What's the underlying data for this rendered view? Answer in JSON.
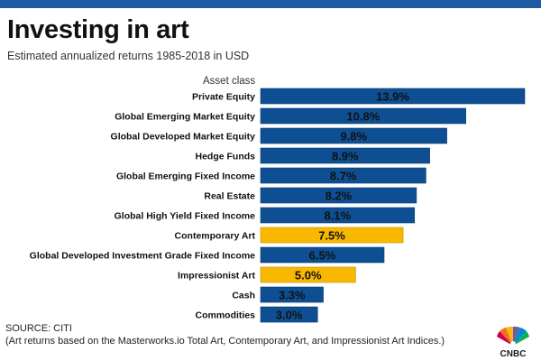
{
  "header": {
    "title": "Investing in art",
    "subtitle": "Estimated annualized returns 1985-2018 in USD"
  },
  "footer": {
    "source": "SOURCE: CITI",
    "note": "(Art returns based on the Masterworks.io Total Art, Contemporary Art, and Impressionist Art Indices.)"
  },
  "logo": {
    "name": "CNBC",
    "icon": "peacock-icon"
  },
  "colors": {
    "accent_bar": "#1c5ba3",
    "default_bar": "#0d4f92",
    "highlight_bar": "#f9b800",
    "top_rule": "#1c5ba3"
  },
  "chart_data": {
    "type": "bar",
    "orientation": "horizontal",
    "category_header": "Asset class",
    "categories": [
      "Private Equity",
      "Global Emerging Market Equity",
      "Global Developed Market Equity",
      "Hedge Funds",
      "Global Emerging Fixed Income",
      "Real Estate",
      "Global High Yield Fixed Income",
      "Contemporary Art",
      "Global Developed Investment Grade Fixed Income",
      "Impressionist Art",
      "Cash",
      "Commodities"
    ],
    "values": [
      13.9,
      10.8,
      9.8,
      8.9,
      8.7,
      8.2,
      8.1,
      7.5,
      6.5,
      5.0,
      3.3,
      3.0
    ],
    "value_labels": [
      "13.9%",
      "10.8%",
      "9.8%",
      "8.9%",
      "8.7%",
      "8.2%",
      "8.1%",
      "7.5%",
      "6.5%",
      "5.0%",
      "3.3%",
      "3.0%"
    ],
    "highlighted": [
      "Contemporary Art",
      "Impressionist Art"
    ],
    "xlim": [
      0,
      13.9
    ],
    "grid": false,
    "legend": "none"
  }
}
